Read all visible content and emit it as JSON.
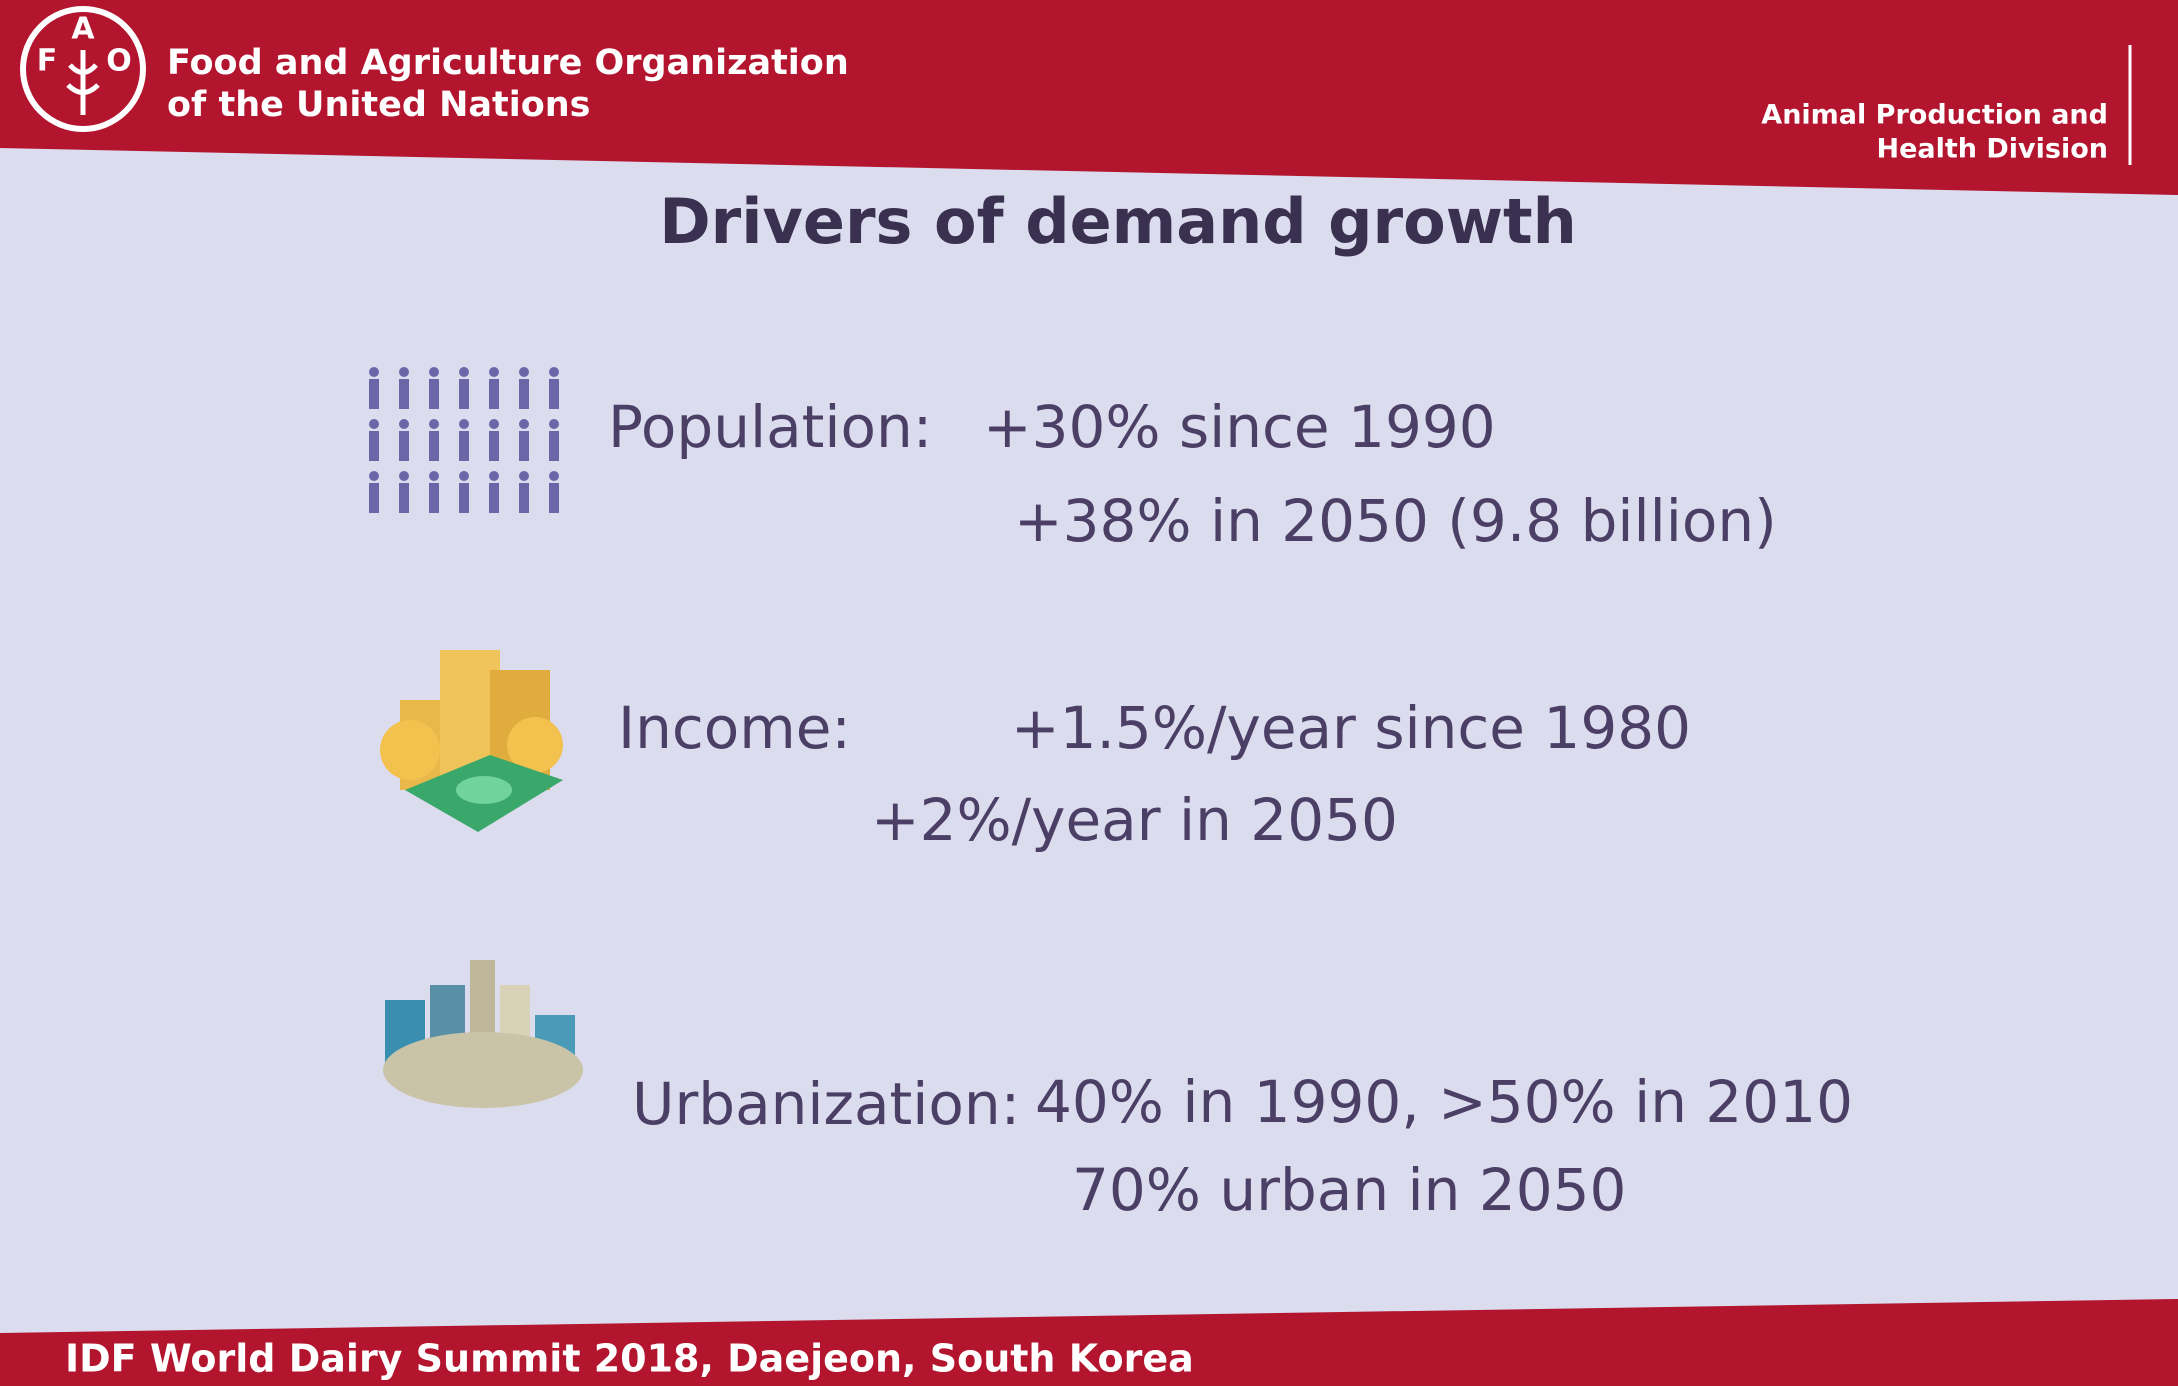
{
  "header": {
    "logo_letters": [
      "F",
      "A",
      "O"
    ],
    "org_name": [
      "Food and Agriculture Organization",
      "of the United Nations"
    ],
    "division": [
      "Animal Production and",
      "Health Division"
    ]
  },
  "title": "Drivers of demand growth",
  "drivers": [
    {
      "label": "Population:",
      "lines": [
        "+30% since 1990",
        "+38% in 2050 (9.8 billion)"
      ]
    },
    {
      "label": "Income:",
      "lines": [
        "+1.5%/year since 1980",
        "+2%/year in 2050"
      ]
    },
    {
      "label": "Urbanization:",
      "lines": [
        "40% in 1990, >50% in 2010",
        "70% urban in 2050"
      ]
    }
  ],
  "footer": "IDF World Dairy  Summit 2018, Daejeon, South Korea"
}
